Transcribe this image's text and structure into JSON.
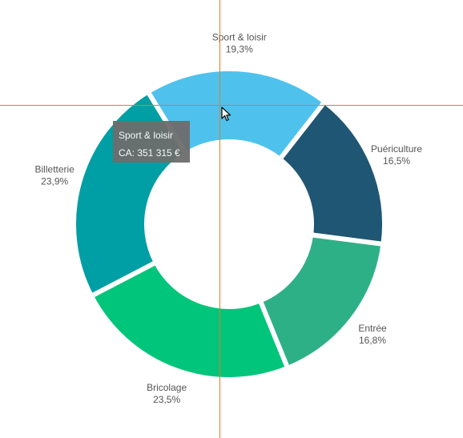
{
  "chart_data": {
    "type": "pie",
    "subtype": "donut",
    "title": "",
    "slices": [
      {
        "label": "Sport & loisir",
        "value": 19.3,
        "display": "19,3%",
        "color": "#4ec2ec"
      },
      {
        "label": "Puériculture",
        "value": 16.5,
        "display": "16,5%",
        "color": "#1f5673"
      },
      {
        "label": "Entrée",
        "value": 16.8,
        "display": "16,8%",
        "color": "#2eb086"
      },
      {
        "label": "Bricolage",
        "value": 23.5,
        "display": "23,5%",
        "color": "#00c57a"
      },
      {
        "label": "Billetterie",
        "value": 23.9,
        "display": "23,9%",
        "color": "#009ea5"
      }
    ],
    "legend": "none"
  },
  "tooltip": {
    "title": "Sport & loisir",
    "value": "CA: 351 315 €"
  },
  "crosshair_color": "#e07b2a",
  "cursor_icon": "pointer-arrow-icon"
}
